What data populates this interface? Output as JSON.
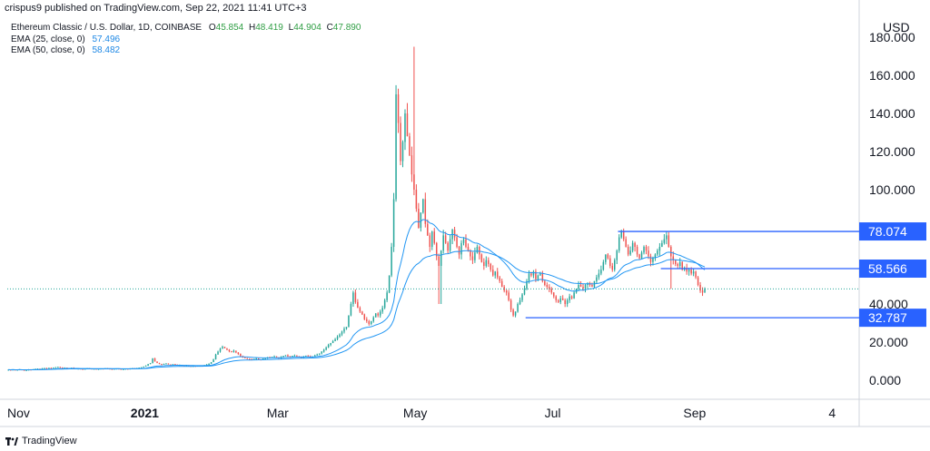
{
  "header": {
    "publisher": "crispus9 published on TradingView.com, Sep 22, 2021 11:41 UTC+3"
  },
  "legend": {
    "line1_prefix": "Ethereum Classic / U.S. Dollar, 1D, COINBASE",
    "o_label": "O",
    "o_value": "45.854",
    "h_label": "H",
    "h_value": "48.419",
    "l_label": "L",
    "l_value": "44.904",
    "c_label": "C",
    "c_value": "47.890",
    "ema25_label": "EMA (25, close, 0)",
    "ema25_value": "57.496",
    "ema50_label": "EMA (50, close, 0)",
    "ema50_value": "58.482"
  },
  "footer": {
    "brand": "TradingView"
  },
  "colors": {
    "up": "#26a69a",
    "down": "#ef5350",
    "ema": "#2196f3",
    "level": "#2962ff",
    "tag": "#2962ff"
  },
  "chart_data": {
    "type": "candlestick",
    "title": "Ethereum Classic / U.S. Dollar, 1D, COINBASE",
    "currency": "USD",
    "y_ticks": [
      "180.000",
      "160.000",
      "140.000",
      "120.000",
      "100.000",
      "80.000",
      "60.000",
      "40.000",
      "20.000",
      "0.000"
    ],
    "y_tick_values": [
      180,
      160,
      140,
      120,
      100,
      80,
      60,
      40,
      20,
      0
    ],
    "ylim": [
      -10,
      190
    ],
    "x_ticks": [
      "Nov",
      "2021",
      "Mar",
      "May",
      "Jul",
      "Sep",
      "4"
    ],
    "x_tick_days": [
      0,
      61,
      120,
      181,
      242,
      305,
      366
    ],
    "xlim": [
      0,
      378
    ],
    "grid": false,
    "levels": [
      {
        "label": "78.074",
        "value": 78.074,
        "x_start_day": 271
      },
      {
        "label": "58.566",
        "value": 58.566,
        "x_start_day": 290
      },
      {
        "label": "32.787",
        "value": 32.787,
        "x_start_day": 230
      }
    ],
    "last_close": 47.89,
    "closes": [
      5.5,
      5.4,
      5.6,
      5.3,
      5.5,
      5.7,
      5.4,
      5.2,
      5.3,
      5.6,
      5.5,
      5.8,
      5.9,
      6.0,
      5.7,
      6.2,
      6.4,
      6.1,
      6.5,
      6.3,
      6.6,
      6.8,
      7.0,
      6.7,
      6.5,
      6.6,
      6.4,
      6.3,
      6.5,
      6.2,
      6.0,
      6.1,
      5.9,
      5.8,
      6.0,
      6.2,
      6.1,
      5.9,
      6.0,
      5.8,
      5.9,
      6.1,
      6.0,
      6.2,
      6.1,
      5.9,
      5.8,
      6.0,
      6.1,
      5.9,
      5.7,
      5.8,
      6.0,
      5.9,
      6.1,
      6.3,
      6.2,
      6.4,
      6.6,
      6.8,
      7.2,
      7.6,
      8.5,
      9.0,
      11.5,
      9.8,
      9.0,
      8.5,
      8.2,
      8.6,
      8.8,
      8.3,
      8.0,
      8.4,
      8.2,
      7.8,
      8.0,
      7.6,
      7.5,
      7.8,
      7.4,
      7.2,
      7.5,
      7.3,
      7.6,
      7.4,
      7.7,
      7.9,
      8.2,
      8.6,
      9.5,
      11.0,
      13.5,
      15.0,
      16.5,
      17.5,
      16.8,
      16.0,
      15.2,
      14.8,
      15.5,
      14.6,
      13.8,
      12.5,
      12.0,
      11.5,
      11.2,
      11.0,
      10.8,
      11.2,
      11.5,
      11.0,
      10.8,
      11.3,
      11.6,
      12.0,
      11.8,
      12.2,
      12.5,
      11.8,
      11.5,
      12.2,
      12.8,
      13.2,
      12.6,
      12.2,
      12.8,
      13.0,
      12.5,
      12.1,
      11.8,
      12.4,
      12.9,
      12.6,
      12.2,
      12.5,
      13.0,
      13.5,
      14.0,
      15.0,
      16.0,
      17.2,
      18.5,
      19.5,
      20.5,
      21.5,
      22.8,
      24.0,
      25.5,
      27.0,
      28.0,
      34.0,
      40.0,
      46.0,
      41.0,
      38.0,
      36.0,
      34.5,
      32.0,
      31.0,
      29.5,
      31.0,
      33.0,
      35.0,
      34.0,
      36.0,
      38.0,
      42.0,
      46.0,
      55.0,
      70.0,
      95.0,
      150.0,
      135.0,
      115.0,
      125.0,
      140.0,
      128.0,
      118.0,
      108.0,
      100.0,
      90.0,
      80.0,
      88.0,
      95.0,
      82.0,
      76.0,
      70.0,
      78.0,
      72.0,
      65.0,
      60.0,
      68.0,
      76.0,
      72.0,
      68.0,
      74.0,
      79.0,
      75.0,
      70.0,
      66.0,
      72.0,
      74.0,
      70.0,
      68.0,
      65.0,
      63.0,
      67.0,
      70.0,
      66.0,
      62.0,
      60.0,
      63.0,
      61.0,
      58.0,
      55.0,
      57.0,
      54.0,
      52.0,
      49.0,
      47.0,
      46.0,
      42.0,
      37.0,
      34.0,
      36.0,
      40.0,
      42.0,
      45.0,
      48.0,
      52.0,
      56.0,
      55.0,
      57.0,
      53.0,
      55.0,
      56.0,
      52.0,
      50.0,
      49.0,
      48.0,
      46.0,
      44.0,
      42.0,
      41.0,
      43.0,
      42.0,
      40.0,
      42.0,
      44.0,
      43.0,
      46.0,
      48.0,
      50.0,
      49.0,
      48.0,
      50.0,
      51.0,
      50.0,
      49.0,
      52.0,
      54.0,
      56.0,
      58.0,
      62.0,
      66.0,
      64.0,
      60.0,
      58.0,
      63.0,
      68.0,
      75.0,
      78.0,
      74.0,
      70.0,
      66.0,
      68.0,
      72.0,
      70.0,
      66.0,
      64.0,
      67.0,
      70.0,
      68.0,
      65.0,
      62.0,
      64.0,
      66.0,
      68.0,
      70.0,
      72.0,
      74.0,
      76.0,
      70.0,
      65.0,
      63.0,
      61.0,
      60.0,
      62.0,
      58.0,
      59.0,
      57.0,
      58.0,
      56.0,
      57.0,
      54.0,
      50.0,
      47.0,
      46.0,
      47.89
    ],
    "ema25_last": 57.496,
    "ema50_last": 58.482
  }
}
